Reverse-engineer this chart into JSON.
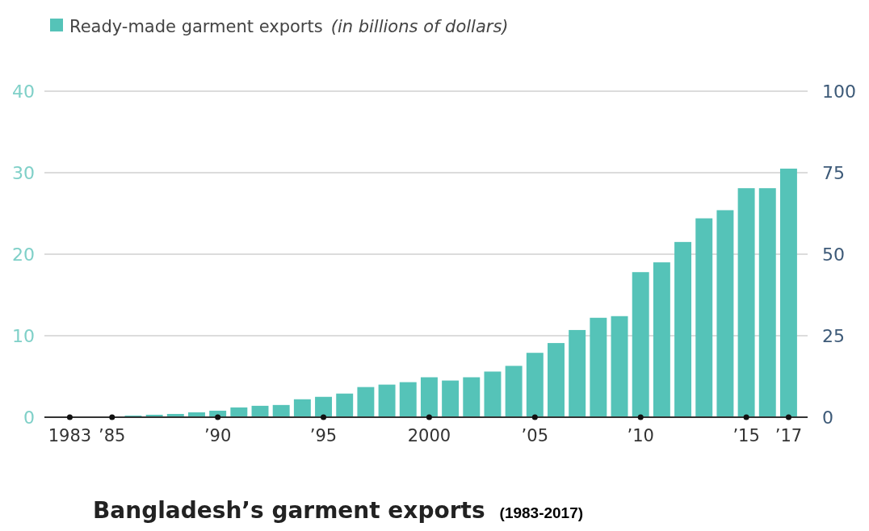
{
  "chart_data": {
    "type": "bar",
    "title": "Bangladesh’s garment exports",
    "subtitle": "(1983-2017)",
    "ylabel": "(in billions of dollars)",
    "x": [
      1983,
      1984,
      1985,
      1986,
      1987,
      1988,
      1989,
      1990,
      1991,
      1992,
      1993,
      1994,
      1995,
      1996,
      1997,
      1998,
      1999,
      2000,
      2001,
      2002,
      2003,
      2004,
      2005,
      2006,
      2007,
      2008,
      2009,
      2010,
      2011,
      2012,
      2013,
      2014,
      2015,
      2016,
      2017
    ],
    "series": [
      {
        "name": "Ready-made garment exports",
        "color": "#55c3b8",
        "values": [
          0,
          0,
          0,
          0.2,
          0.3,
          0.4,
          0.6,
          0.8,
          1.2,
          1.4,
          1.5,
          2.2,
          2.5,
          2.9,
          3.7,
          4.0,
          4.3,
          4.9,
          4.5,
          4.9,
          5.6,
          6.3,
          7.9,
          9.1,
          10.7,
          12.2,
          12.4,
          17.8,
          19.0,
          21.5,
          24.4,
          25.4,
          28.1,
          28.1,
          30.5
        ]
      }
    ],
    "xlim": [
      1981.8,
      2017.9
    ],
    "xticks": [
      1983,
      {
        "value": 1985,
        "label": "’85"
      },
      {
        "value": 1990,
        "label": "’90"
      },
      {
        "value": 1995,
        "label": "’95"
      },
      2000,
      {
        "value": 2005,
        "label": "’05"
      },
      {
        "value": 2010,
        "label": "’10"
      },
      {
        "value": 2015,
        "label": "’15"
      },
      {
        "value": 2017,
        "label": "’17"
      }
    ],
    "ylim": [
      0,
      40
    ],
    "yticks": [
      0,
      10,
      20,
      30,
      40
    ],
    "y2lim": [
      0,
      100
    ],
    "y2ticks": [
      0,
      25,
      50,
      75,
      100
    ],
    "grid": "y",
    "legend": "top left"
  }
}
